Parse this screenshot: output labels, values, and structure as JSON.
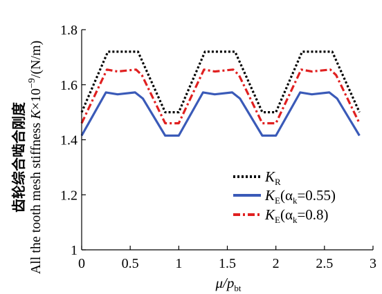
{
  "chart_data": {
    "type": "line",
    "ylabel_cn": "齿轮综合啮合刚度",
    "ylabel_en": "All the tooth mesh stiffness ",
    "ylabel_sym": "K",
    "ylabel_unit": "×10",
    "ylabel_exp": "−9",
    "ylabel_tail": "/(N/m)",
    "xlabel_main": "μ/p",
    "xlabel_sub": "bt",
    "xlim": [
      0,
      3
    ],
    "ylim": [
      1,
      1.8
    ],
    "xticks": [
      "0",
      "0.5",
      "1",
      "1.5",
      "2",
      "2.5",
      "3"
    ],
    "yticks": [
      "1",
      "1.2",
      "1.4",
      "1.6",
      "1.8"
    ],
    "grid": false,
    "legend_position": "lower-right",
    "series": [
      {
        "name": "K_R",
        "label_main": "K",
        "label_sub": "R",
        "label_tail": "",
        "color": "#000000",
        "style": "dotted",
        "x": [
          0,
          0.27,
          0.58,
          0.86,
          1.0,
          1.27,
          1.58,
          1.86,
          2.0,
          2.27,
          2.58,
          2.86
        ],
        "y": [
          1.5,
          1.72,
          1.72,
          1.5,
          1.5,
          1.72,
          1.72,
          1.5,
          1.5,
          1.72,
          1.72,
          1.5
        ]
      },
      {
        "name": "K_E(α_k=0.55)",
        "label_main": "K",
        "label_sub": "E",
        "label_mid": "(α",
        "label_sub2": "k",
        "label_tail": "=0.55)",
        "color": "#3a5ab8",
        "style": "solid",
        "x": [
          0,
          0.25,
          0.37,
          0.55,
          0.63,
          0.86,
          1.0,
          1.25,
          1.37,
          1.55,
          1.63,
          1.86,
          2.0,
          2.25,
          2.37,
          2.55,
          2.63,
          2.86
        ],
        "y": [
          1.415,
          1.572,
          1.565,
          1.572,
          1.55,
          1.415,
          1.415,
          1.572,
          1.565,
          1.572,
          1.55,
          1.415,
          1.415,
          1.572,
          1.565,
          1.572,
          1.55,
          1.415
        ]
      },
      {
        "name": "K_E(α_k=0.8)",
        "label_main": "K",
        "label_sub": "E",
        "label_mid": "(α",
        "label_sub2": "k",
        "label_tail": "=0.8)",
        "color": "#e02020",
        "style": "dashdot",
        "x": [
          0,
          0.26,
          0.37,
          0.56,
          0.62,
          0.86,
          1.0,
          1.26,
          1.37,
          1.56,
          1.62,
          1.86,
          2.0,
          2.26,
          2.37,
          2.56,
          2.62,
          2.86
        ],
        "y": [
          1.46,
          1.655,
          1.648,
          1.655,
          1.635,
          1.46,
          1.46,
          1.655,
          1.648,
          1.655,
          1.635,
          1.46,
          1.46,
          1.655,
          1.648,
          1.655,
          1.635,
          1.46
        ]
      }
    ]
  }
}
